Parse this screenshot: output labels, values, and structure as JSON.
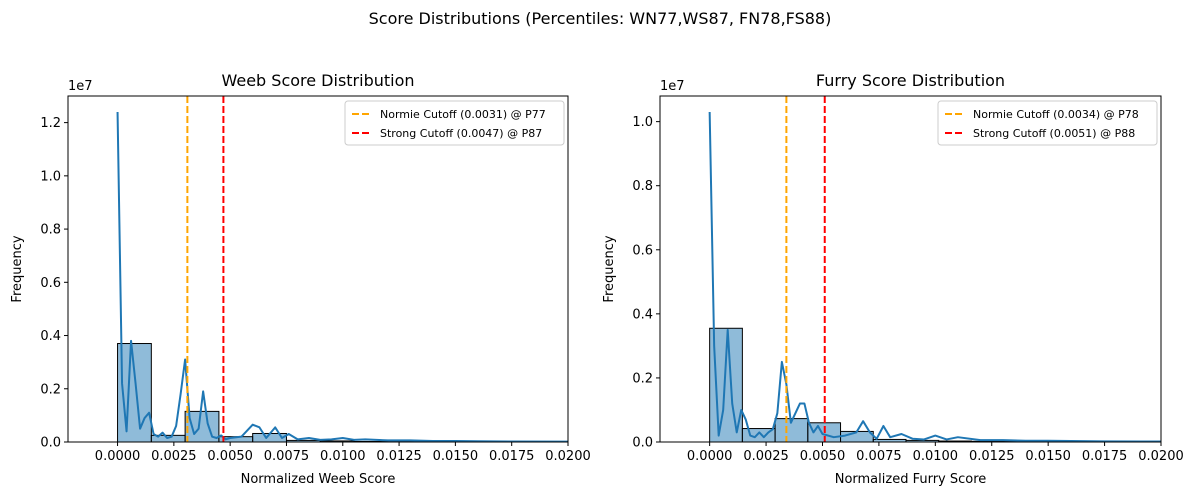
{
  "suptitle": "Score Distributions (Percentiles: WN77,WS87, FN78,FS88)",
  "colors": {
    "hist_fill": "#1f77b4",
    "kde_line": "#1f77b4",
    "normie_line": "#ffa500",
    "strong_line": "#ff0000"
  },
  "chart_data": [
    {
      "type": "bar",
      "title": "Weeb Score Distribution",
      "xlabel": "Normalized Weeb Score",
      "ylabel": "Frequency",
      "offset_label": "1e7",
      "xlim": [
        -0.0022,
        0.02
      ],
      "ylim": [
        0,
        13000000
      ],
      "xticks": [
        0.0,
        0.0025,
        0.005,
        0.0075,
        0.01,
        0.0125,
        0.015,
        0.0175,
        0.02
      ],
      "xtick_labels": [
        "0.0000",
        "0.0025",
        "0.0050",
        "0.0075",
        "0.0100",
        "0.0125",
        "0.0150",
        "0.0175",
        "0.0200"
      ],
      "yticks": [
        0,
        2000000,
        4000000,
        6000000,
        8000000,
        10000000,
        12000000
      ],
      "ytick_labels": [
        "0.0",
        "0.2",
        "0.4",
        "0.6",
        "0.8",
        "1.0",
        "1.2"
      ],
      "histogram": {
        "bin_edges": [
          0.0,
          0.0015,
          0.003,
          0.0045,
          0.006,
          0.0075,
          0.009,
          0.0105,
          0.012,
          0.0135,
          0.015,
          0.0165,
          0.018,
          0.0195,
          0.021
        ],
        "counts": [
          3700000,
          250000,
          1150000,
          200000,
          320000,
          60000,
          40000,
          20000,
          15000,
          10000,
          8000,
          5000,
          3000,
          2000
        ]
      },
      "kde": {
        "x": [
          0.0,
          0.0002,
          0.0004,
          0.0006,
          0.0008,
          0.001,
          0.0012,
          0.0014,
          0.0016,
          0.0018,
          0.002,
          0.0022,
          0.0024,
          0.0026,
          0.0028,
          0.003,
          0.0032,
          0.0034,
          0.0036,
          0.0038,
          0.004,
          0.0042,
          0.0044,
          0.0046,
          0.0048,
          0.005,
          0.0055,
          0.006,
          0.0063,
          0.0066,
          0.007,
          0.0073,
          0.0076,
          0.008,
          0.0085,
          0.009,
          0.0095,
          0.01,
          0.0105,
          0.011,
          0.012,
          0.013,
          0.014,
          0.015,
          0.016,
          0.0175,
          0.02
        ],
        "y": [
          12400000,
          2200000,
          400000,
          3800000,
          2200000,
          500000,
          900000,
          1100000,
          300000,
          200000,
          350000,
          150000,
          200000,
          600000,
          1800000,
          3100000,
          900000,
          300000,
          500000,
          1900000,
          700000,
          200000,
          150000,
          250000,
          100000,
          150000,
          200000,
          650000,
          550000,
          150000,
          550000,
          150000,
          300000,
          100000,
          150000,
          80000,
          100000,
          150000,
          80000,
          100000,
          60000,
          60000,
          40000,
          40000,
          30000,
          20000,
          15000
        ]
      },
      "cutoffs": [
        {
          "name": "Normie Cutoff (0.0031) @ P77",
          "x": 0.0031,
          "color": "#ffa500"
        },
        {
          "name": "Strong Cutoff (0.0047) @ P87",
          "x": 0.0047,
          "color": "#ff0000"
        }
      ],
      "legend_position": "upper right"
    },
    {
      "type": "bar",
      "title": "Furry Score Distribution",
      "xlabel": "Normalized Furry Score",
      "ylabel": "Frequency",
      "offset_label": "1e7",
      "xlim": [
        -0.0022,
        0.02
      ],
      "ylim": [
        0,
        10800000
      ],
      "xticks": [
        0.0,
        0.0025,
        0.005,
        0.0075,
        0.01,
        0.0125,
        0.015,
        0.0175,
        0.02
      ],
      "xtick_labels": [
        "0.0000",
        "0.0025",
        "0.0050",
        "0.0075",
        "0.0100",
        "0.0125",
        "0.0150",
        "0.0175",
        "0.0200"
      ],
      "yticks": [
        0,
        2000000,
        4000000,
        6000000,
        8000000,
        10000000
      ],
      "ytick_labels": [
        "0.0",
        "0.2",
        "0.4",
        "0.6",
        "0.8",
        "1.0"
      ],
      "histogram": {
        "bin_edges": [
          0.0,
          0.00145,
          0.0029,
          0.00435,
          0.0058,
          0.00725,
          0.0087,
          0.01015,
          0.0116,
          0.01305,
          0.0145,
          0.01595,
          0.0174,
          0.01885,
          0.0203
        ],
        "counts": [
          3550000,
          420000,
          730000,
          600000,
          330000,
          80000,
          50000,
          30000,
          20000,
          15000,
          10000,
          6000,
          4000,
          2000
        ]
      },
      "kde": {
        "x": [
          0.0,
          0.0002,
          0.0004,
          0.0006,
          0.0008,
          0.001,
          0.0012,
          0.0014,
          0.0016,
          0.0018,
          0.002,
          0.0022,
          0.0024,
          0.0026,
          0.0028,
          0.003,
          0.0032,
          0.0034,
          0.0036,
          0.0038,
          0.004,
          0.0042,
          0.0044,
          0.0046,
          0.0048,
          0.005,
          0.0055,
          0.006,
          0.0065,
          0.0068,
          0.0071,
          0.0074,
          0.0077,
          0.008,
          0.0085,
          0.009,
          0.0095,
          0.01,
          0.0105,
          0.011,
          0.012,
          0.013,
          0.014,
          0.015,
          0.016,
          0.0175,
          0.02
        ],
        "y": [
          10300000,
          3000000,
          200000,
          1000000,
          3500000,
          1200000,
          300000,
          1000000,
          700000,
          200000,
          150000,
          300000,
          150000,
          300000,
          400000,
          900000,
          2500000,
          1800000,
          600000,
          900000,
          1200000,
          1200000,
          600000,
          300000,
          500000,
          250000,
          150000,
          200000,
          300000,
          650000,
          300000,
          100000,
          500000,
          150000,
          250000,
          100000,
          80000,
          200000,
          80000,
          150000,
          60000,
          60000,
          40000,
          40000,
          30000,
          20000,
          15000
        ]
      },
      "cutoffs": [
        {
          "name": "Normie Cutoff (0.0034) @ P78",
          "x": 0.0034,
          "color": "#ffa500"
        },
        {
          "name": "Strong Cutoff (0.0051) @ P88",
          "x": 0.0051,
          "color": "#ff0000"
        }
      ],
      "legend_position": "upper right"
    }
  ]
}
